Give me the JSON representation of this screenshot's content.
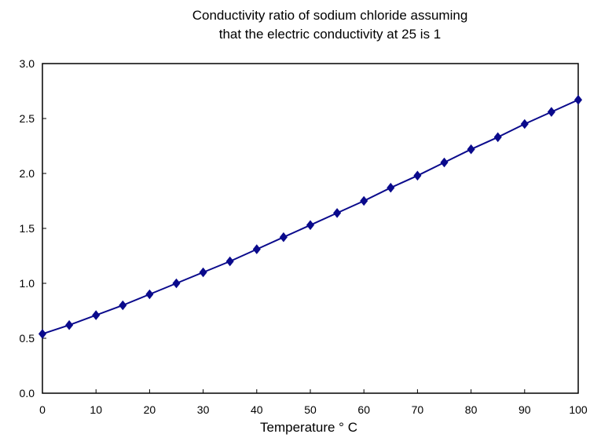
{
  "chart_data": {
    "type": "line",
    "title_line1": "Conductivity ratio of sodium chloride assuming",
    "title_line2": "that the electric conductivity at 25   is 1",
    "xlabel": "Temperature ° C",
    "ylabel": "",
    "xlim": [
      0,
      100
    ],
    "ylim": [
      0,
      3.0
    ],
    "x_ticks": [
      "0",
      "10",
      "20",
      "30",
      "40",
      "50",
      "60",
      "70",
      "80",
      "90",
      "100"
    ],
    "y_ticks": [
      "0.0",
      "0.5",
      "1.0",
      "1.5",
      "2.0",
      "2.5",
      "3.0"
    ],
    "grid": false,
    "legend": "none",
    "series": [
      {
        "color": "#0a0a8c",
        "marker": "diamond",
        "x": [
          0,
          5,
          10,
          15,
          20,
          25,
          30,
          35,
          40,
          45,
          50,
          55,
          60,
          65,
          70,
          75,
          80,
          85,
          90,
          95,
          100
        ],
        "y": [
          0.54,
          0.62,
          0.71,
          0.8,
          0.9,
          1.0,
          1.1,
          1.2,
          1.31,
          1.42,
          1.53,
          1.64,
          1.75,
          1.87,
          1.98,
          2.1,
          2.22,
          2.33,
          2.45,
          2.56,
          2.67
        ]
      }
    ]
  }
}
